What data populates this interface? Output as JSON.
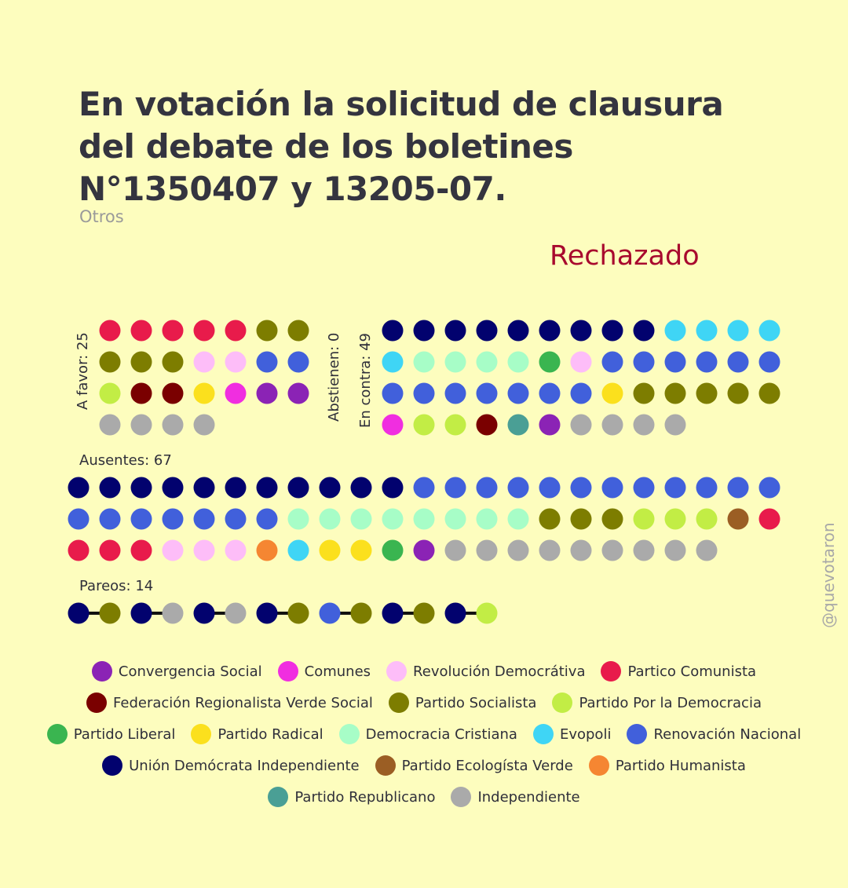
{
  "title": "En votación la solicitud de clausura del debate de los boletines N°1350407 y 13205-07.",
  "subtitle": "Otros",
  "result": "Rechazado",
  "watermark": "@quevotaron",
  "chart_data": {
    "type": "dot-grid",
    "groups": [
      {
        "key": "favor",
        "label": "A favor: 25",
        "count": 25,
        "dots": [
          "PC",
          "PC",
          "PC",
          "PC",
          "PC",
          "PS",
          "PS",
          "PS",
          "PS",
          "PS",
          "RD",
          "RD",
          "RN",
          "RN",
          "PPD",
          "FRVS",
          "FRVS",
          "PR",
          "COM",
          "CS",
          "CS",
          "IND",
          "IND",
          "IND",
          "IND"
        ]
      },
      {
        "key": "abst",
        "label": "Abstienen: 0",
        "count": 0,
        "dots": []
      },
      {
        "key": "contra",
        "label": "En contra: 49",
        "count": 49,
        "dots": [
          "UDI",
          "UDI",
          "UDI",
          "UDI",
          "UDI",
          "UDI",
          "UDI",
          "UDI",
          "UDI",
          "EVO",
          "EVO",
          "EVO",
          "EVO",
          "EVO",
          "DC",
          "DC",
          "DC",
          "DC",
          "PL",
          "RD",
          "RN",
          "RN",
          "RN",
          "RN",
          "RN",
          "RN",
          "RN",
          "RN",
          "RN",
          "RN",
          "RN",
          "RN",
          "RN",
          "PR",
          "PS",
          "PS",
          "PS",
          "PS",
          "PS",
          "COM",
          "PPD",
          "PPD",
          "FRVS",
          "REP",
          "CS",
          "IND",
          "IND",
          "IND",
          "IND"
        ]
      },
      {
        "key": "ausentes",
        "label": "Ausentes: 67",
        "count": 67,
        "dots": [
          "UDI",
          "UDI",
          "UDI",
          "UDI",
          "UDI",
          "UDI",
          "UDI",
          "UDI",
          "UDI",
          "UDI",
          "UDI",
          "RN",
          "RN",
          "RN",
          "RN",
          "RN",
          "RN",
          "RN",
          "RN",
          "RN",
          "RN",
          "RN",
          "RN",
          "RN",
          "RN",
          "RN",
          "RN",
          "RN",
          "RN",
          "RN",
          "DC",
          "DC",
          "DC",
          "DC",
          "DC",
          "DC",
          "DC",
          "DC",
          "PS",
          "PS",
          "PS",
          "PPD",
          "PPD",
          "PPD",
          "PEV",
          "PC",
          "PC",
          "PC",
          "PC",
          "RD",
          "RD",
          "RD",
          "PH",
          "EVO",
          "PR",
          "PR",
          "PL",
          "CS",
          "IND",
          "IND",
          "IND",
          "IND",
          "IND",
          "IND",
          "IND",
          "IND",
          "IND"
        ]
      },
      {
        "key": "pareos",
        "label": "Pareos: 14",
        "count": 14,
        "pairs": [
          [
            "UDI",
            "PS"
          ],
          [
            "UDI",
            "IND"
          ],
          [
            "UDI",
            "IND"
          ],
          [
            "UDI",
            "PS"
          ],
          [
            "RN",
            "PS"
          ],
          [
            "UDI",
            "PS"
          ],
          [
            "UDI",
            "PPD"
          ]
        ]
      }
    ],
    "parties": [
      {
        "key": "CS",
        "name": "Convergencia Social",
        "color": "#8b23b5"
      },
      {
        "key": "COM",
        "name": "Comunes",
        "color": "#f02ee0"
      },
      {
        "key": "RD",
        "name": "Revolución Democrátiva",
        "color": "#fdbdf8"
      },
      {
        "key": "PC",
        "name": "Partico Comunista",
        "color": "#e81b4b"
      },
      {
        "key": "FRVS",
        "name": "Federación Regionalista Verde Social",
        "color": "#7a0000"
      },
      {
        "key": "PS",
        "name": "Partido Socialista",
        "color": "#7d7d00"
      },
      {
        "key": "PPD",
        "name": "Partido Por la Democracia",
        "color": "#c2ed45"
      },
      {
        "key": "PL",
        "name": "Partido Liberal",
        "color": "#3ab550"
      },
      {
        "key": "PR",
        "name": "Partido Radical",
        "color": "#fbe01d"
      },
      {
        "key": "DC",
        "name": "Democracia Cristiana",
        "color": "#a7fdc7"
      },
      {
        "key": "EVO",
        "name": "Evopoli",
        "color": "#3fd5f5"
      },
      {
        "key": "RN",
        "name": "Renovación Nacional",
        "color": "#4160db"
      },
      {
        "key": "UDI",
        "name": "Unión Demócrata Independiente",
        "color": "#02026e"
      },
      {
        "key": "PEV",
        "name": "Partido Ecologísta Verde",
        "color": "#9b5e24"
      },
      {
        "key": "PH",
        "name": "Partido Humanista",
        "color": "#f58632"
      },
      {
        "key": "REP",
        "name": "Partido Republicano",
        "color": "#4a9f95"
      },
      {
        "key": "IND",
        "name": "Independiente",
        "color": "#aaaaaa"
      }
    ]
  }
}
